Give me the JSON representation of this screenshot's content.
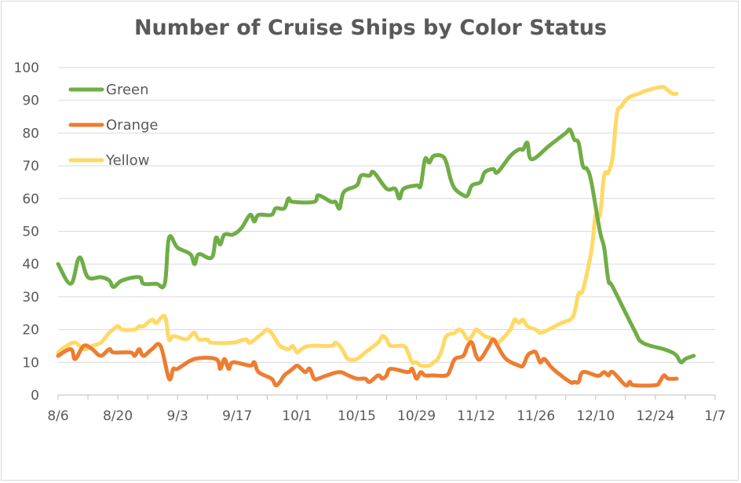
{
  "chart_data": {
    "type": "line",
    "title": "Number of Cruise Ships by Color Status",
    "xlabel": "",
    "ylabel": "",
    "ylim": [
      0,
      100
    ],
    "yticks": [
      0,
      10,
      20,
      30,
      40,
      50,
      60,
      70,
      80,
      90,
      100
    ],
    "x_tick_labels": [
      "8/6",
      "8/20",
      "9/3",
      "9/17",
      "10/1",
      "10/15",
      "10/29",
      "11/12",
      "11/26",
      "12/10",
      "12/24",
      "1/7"
    ],
    "x_tick_days": [
      0,
      14,
      28,
      42,
      56,
      70,
      84,
      98,
      112,
      126,
      140,
      154
    ],
    "grid": true,
    "legend_position": "top-left",
    "series": [
      {
        "name": "Green",
        "color": "#70ad47",
        "points": [
          [
            0,
            40
          ],
          [
            3,
            34
          ],
          [
            5,
            42
          ],
          [
            7,
            36
          ],
          [
            10,
            36
          ],
          [
            12,
            35
          ],
          [
            13,
            33
          ],
          [
            15,
            35
          ],
          [
            19,
            36
          ],
          [
            20,
            34
          ],
          [
            23,
            34
          ],
          [
            25,
            34
          ],
          [
            26,
            48
          ],
          [
            28,
            45
          ],
          [
            31,
            43
          ],
          [
            32,
            40
          ],
          [
            33,
            43
          ],
          [
            36,
            42
          ],
          [
            37,
            48
          ],
          [
            38,
            46
          ],
          [
            39,
            49
          ],
          [
            41,
            49
          ],
          [
            43,
            51
          ],
          [
            45,
            55
          ],
          [
            46,
            53
          ],
          [
            47,
            55
          ],
          [
            50,
            55
          ],
          [
            51,
            57
          ],
          [
            53,
            57
          ],
          [
            54,
            60
          ],
          [
            55,
            59
          ],
          [
            60,
            59
          ],
          [
            61,
            61
          ],
          [
            64,
            59
          ],
          [
            65,
            59
          ],
          [
            66,
            57
          ],
          [
            67,
            62
          ],
          [
            70,
            64
          ],
          [
            71,
            67
          ],
          [
            73,
            67
          ],
          [
            74,
            68
          ],
          [
            77,
            63
          ],
          [
            79,
            63
          ],
          [
            80,
            60
          ],
          [
            81,
            63
          ],
          [
            84,
            64
          ],
          [
            85,
            64
          ],
          [
            86,
            72
          ],
          [
            87,
            71
          ],
          [
            88,
            73
          ],
          [
            90,
            73
          ],
          [
            91,
            71
          ],
          [
            92,
            66
          ],
          [
            93,
            63
          ],
          [
            95,
            61
          ],
          [
            96,
            61
          ],
          [
            97,
            64
          ],
          [
            99,
            65
          ],
          [
            100,
            68
          ],
          [
            102,
            69
          ],
          [
            103,
            68
          ],
          [
            106,
            73
          ],
          [
            108,
            75
          ],
          [
            109,
            75
          ],
          [
            110,
            77
          ],
          [
            111,
            72
          ],
          [
            115,
            76
          ],
          [
            117,
            78
          ],
          [
            119,
            80
          ],
          [
            120,
            81
          ],
          [
            121,
            78
          ],
          [
            122,
            77
          ],
          [
            123,
            70
          ],
          [
            124,
            69
          ],
          [
            125,
            65
          ],
          [
            127,
            50
          ],
          [
            128,
            45
          ],
          [
            129,
            35
          ],
          [
            130,
            33
          ],
          [
            135,
            20
          ],
          [
            137,
            16
          ],
          [
            142,
            14
          ],
          [
            144,
            13
          ],
          [
            145,
            12
          ],
          [
            146,
            10
          ],
          [
            147,
            11
          ],
          [
            149,
            12
          ]
        ]
      },
      {
        "name": "Orange",
        "color": "#ed7d31",
        "points": [
          [
            0,
            12
          ],
          [
            3,
            14
          ],
          [
            4,
            11
          ],
          [
            6,
            15
          ],
          [
            8,
            14
          ],
          [
            10,
            12
          ],
          [
            12,
            14
          ],
          [
            13,
            13
          ],
          [
            17,
            13
          ],
          [
            18,
            12
          ],
          [
            19,
            14
          ],
          [
            20,
            12
          ],
          [
            22,
            14
          ],
          [
            24,
            15
          ],
          [
            26,
            5
          ],
          [
            27,
            8
          ],
          [
            28,
            8
          ],
          [
            32,
            11
          ],
          [
            37,
            11
          ],
          [
            38,
            8
          ],
          [
            39,
            11
          ],
          [
            40,
            8
          ],
          [
            41,
            10
          ],
          [
            45,
            9
          ],
          [
            46,
            10
          ],
          [
            47,
            7
          ],
          [
            50,
            5
          ],
          [
            51,
            3
          ],
          [
            52,
            4
          ],
          [
            53,
            6
          ],
          [
            54,
            7
          ],
          [
            55,
            8
          ],
          [
            56,
            9
          ],
          [
            57,
            8
          ],
          [
            58,
            7
          ],
          [
            59,
            8
          ],
          [
            60,
            5
          ],
          [
            61,
            5
          ],
          [
            63,
            6
          ],
          [
            66,
            7
          ],
          [
            68,
            6
          ],
          [
            70,
            5
          ],
          [
            72,
            5
          ],
          [
            73,
            4
          ],
          [
            75,
            6
          ],
          [
            76,
            5
          ],
          [
            77,
            6
          ],
          [
            78,
            8
          ],
          [
            82,
            7
          ],
          [
            83,
            8
          ],
          [
            84,
            5
          ],
          [
            85,
            7
          ],
          [
            86,
            6
          ],
          [
            88,
            6
          ],
          [
            91,
            6
          ],
          [
            92,
            8
          ],
          [
            93,
            11
          ],
          [
            95,
            12
          ],
          [
            96,
            15
          ],
          [
            97,
            16
          ],
          [
            98,
            12
          ],
          [
            99,
            11
          ],
          [
            101,
            15
          ],
          [
            102,
            17
          ],
          [
            103,
            15
          ],
          [
            105,
            11
          ],
          [
            108,
            9
          ],
          [
            109,
            9
          ],
          [
            110,
            12
          ],
          [
            111,
            13
          ],
          [
            112,
            13
          ],
          [
            113,
            10
          ],
          [
            114,
            11
          ],
          [
            116,
            8
          ],
          [
            120,
            4
          ],
          [
            121,
            4
          ],
          [
            122,
            4
          ],
          [
            123,
            7
          ],
          [
            126,
            6
          ],
          [
            127,
            6
          ],
          [
            128,
            7
          ],
          [
            129,
            6
          ],
          [
            130,
            7
          ],
          [
            133,
            3
          ],
          [
            134,
            4
          ],
          [
            135,
            3
          ],
          [
            140,
            3
          ],
          [
            141,
            4
          ],
          [
            142,
            6
          ],
          [
            143,
            5
          ],
          [
            145,
            5
          ]
        ]
      },
      {
        "name": "Yellow",
        "color": "#ffd966",
        "points": [
          [
            0,
            13
          ],
          [
            2,
            15
          ],
          [
            4,
            16
          ],
          [
            6,
            14
          ],
          [
            8,
            15
          ],
          [
            10,
            16
          ],
          [
            12,
            19
          ],
          [
            14,
            21
          ],
          [
            15,
            20
          ],
          [
            18,
            20
          ],
          [
            19,
            21
          ],
          [
            20,
            21
          ],
          [
            22,
            23
          ],
          [
            23,
            22
          ],
          [
            25,
            24
          ],
          [
            26,
            17
          ],
          [
            27,
            18
          ],
          [
            30,
            17
          ],
          [
            31,
            18
          ],
          [
            32,
            19
          ],
          [
            33,
            17
          ],
          [
            35,
            17
          ],
          [
            36,
            16
          ],
          [
            41,
            16
          ],
          [
            44,
            17
          ],
          [
            45,
            16
          ],
          [
            48,
            19
          ],
          [
            49,
            20
          ],
          [
            50,
            19
          ],
          [
            51,
            17
          ],
          [
            52,
            15
          ],
          [
            54,
            14
          ],
          [
            55,
            15
          ],
          [
            56,
            13
          ],
          [
            57,
            14
          ],
          [
            59,
            15
          ],
          [
            64,
            15
          ],
          [
            65,
            16
          ],
          [
            66,
            15
          ],
          [
            67,
            13
          ],
          [
            68,
            11
          ],
          [
            70,
            11
          ],
          [
            72,
            13
          ],
          [
            75,
            16
          ],
          [
            76,
            18
          ],
          [
            77,
            17
          ],
          [
            78,
            15
          ],
          [
            81,
            15
          ],
          [
            82,
            13
          ],
          [
            83,
            10
          ],
          [
            84,
            10
          ],
          [
            85,
            9
          ],
          [
            87,
            9
          ],
          [
            88,
            10
          ],
          [
            89,
            11
          ],
          [
            90,
            14
          ],
          [
            91,
            18
          ],
          [
            93,
            19
          ],
          [
            94,
            20
          ],
          [
            95,
            19
          ],
          [
            96,
            17
          ],
          [
            97,
            18
          ],
          [
            98,
            20
          ],
          [
            99,
            19
          ],
          [
            100,
            18
          ],
          [
            102,
            17
          ],
          [
            103,
            16
          ],
          [
            104,
            17
          ],
          [
            106,
            20
          ],
          [
            107,
            23
          ],
          [
            108,
            22
          ],
          [
            109,
            23
          ],
          [
            110,
            21
          ],
          [
            112,
            20
          ],
          [
            113,
            19
          ],
          [
            115,
            20
          ],
          [
            118,
            22
          ],
          [
            120,
            23
          ],
          [
            121,
            25
          ],
          [
            122,
            31
          ],
          [
            123,
            32
          ],
          [
            125,
            44
          ],
          [
            126,
            55
          ],
          [
            127,
            55
          ],
          [
            128,
            67
          ],
          [
            129,
            68
          ],
          [
            130,
            73
          ],
          [
            131,
            86
          ],
          [
            132,
            88
          ],
          [
            133,
            90
          ],
          [
            134,
            91
          ],
          [
            136,
            92
          ],
          [
            138,
            93
          ],
          [
            141,
            94
          ],
          [
            142,
            94
          ],
          [
            143,
            93
          ],
          [
            144,
            92
          ],
          [
            145,
            92
          ]
        ]
      }
    ]
  }
}
